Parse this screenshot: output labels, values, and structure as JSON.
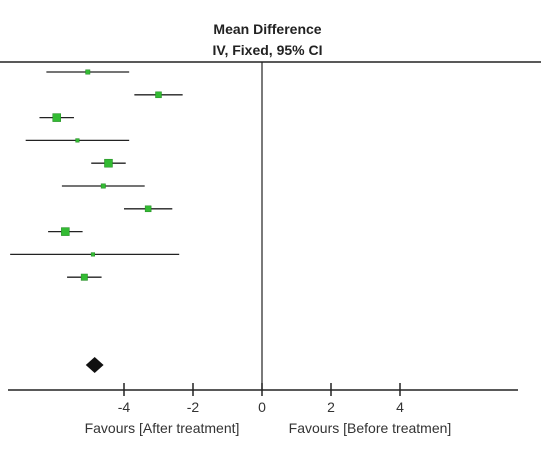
{
  "chart_data": {
    "type": "forest",
    "title": "Mean Difference",
    "subtitle": "IV, Fixed, 95% CI",
    "xlim": [
      -7.4,
      7.5
    ],
    "xticks": [
      -4,
      -2,
      0,
      2,
      4
    ],
    "xtick_labels": [
      "-4",
      "-2",
      "0",
      "2",
      "4"
    ],
    "favours_left": "Favours [After treatment]",
    "favours_right": "Favours [Before treatmen]",
    "studies": [
      {
        "mean": -5.05,
        "lower": -6.25,
        "upper": -3.85,
        "weight": 0.3
      },
      {
        "mean": -3.0,
        "lower": -3.7,
        "upper": -2.3,
        "weight": 0.5
      },
      {
        "mean": -5.95,
        "lower": -6.45,
        "upper": -5.45,
        "weight": 0.75
      },
      {
        "mean": -5.35,
        "lower": -6.85,
        "upper": -3.85,
        "weight": 0.2
      },
      {
        "mean": -4.45,
        "lower": -4.95,
        "upper": -3.95,
        "weight": 0.75
      },
      {
        "mean": -4.6,
        "lower": -5.8,
        "upper": -3.4,
        "weight": 0.3
      },
      {
        "mean": -3.3,
        "lower": -4.0,
        "upper": -2.6,
        "weight": 0.5
      },
      {
        "mean": -5.7,
        "lower": -6.2,
        "upper": -5.2,
        "weight": 0.75
      },
      {
        "mean": -4.9,
        "lower": -7.3,
        "upper": -2.4,
        "weight": 0.2
      },
      {
        "mean": -5.15,
        "lower": -5.65,
        "upper": -4.65,
        "weight": 0.55
      }
    ],
    "pooled": {
      "mean": -4.85,
      "lower": -5.05,
      "upper": -4.65
    },
    "colors": {
      "marker": "#33bb33",
      "line": "#222222",
      "diamond": "#111111"
    }
  }
}
